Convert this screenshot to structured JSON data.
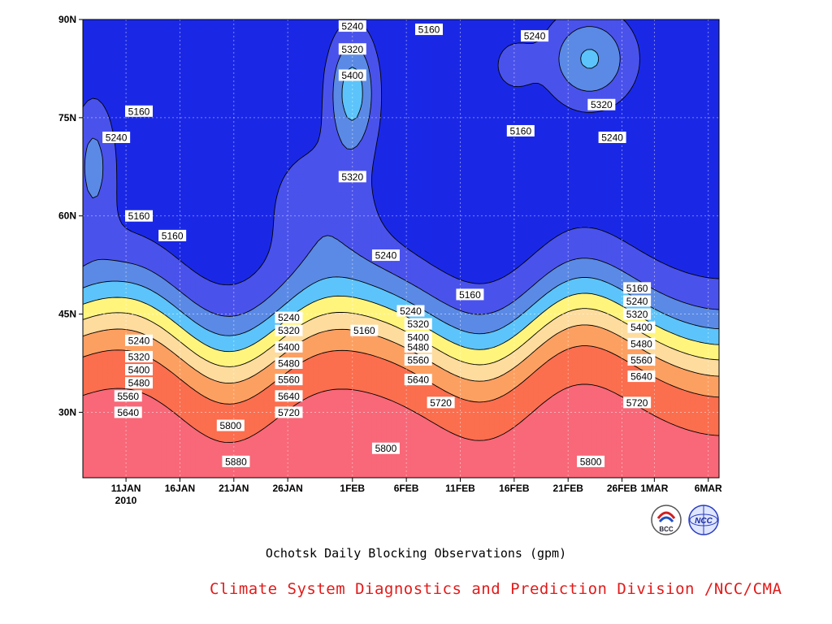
{
  "title": "Ochotsk Daily Blocking Observations (gpm)",
  "credit": "Climate System Diagnostics and Prediction Division /NCC/CMA",
  "logos": [
    {
      "name": "bcc-logo",
      "text": "BCC"
    },
    {
      "name": "ncc-logo",
      "text": "NCC"
    }
  ],
  "chart_data": {
    "type": "heatmap",
    "x_axis": {
      "ticks": [
        "11JAN",
        "16JAN",
        "21JAN",
        "26JAN",
        "1FEB",
        "6FEB",
        "11FEB",
        "16FEB",
        "21FEB",
        "26FEB",
        "1MAR",
        "6MAR"
      ],
      "tick_days": [
        0,
        5,
        10,
        15,
        21,
        26,
        31,
        36,
        41,
        46,
        49,
        54
      ],
      "year_label": "2010",
      "range_days": [
        -4,
        55
      ]
    },
    "y_axis": {
      "ticks": [
        "30N",
        "45N",
        "60N",
        "75N",
        "90N"
      ],
      "tick_values": [
        30,
        45,
        60,
        75,
        90
      ],
      "range": [
        20,
        90
      ]
    },
    "grid": true,
    "levels": [
      5160,
      5240,
      5320,
      5400,
      5480,
      5560,
      5640,
      5720,
      5800,
      5880
    ],
    "fill_colors": [
      "#0a0f6e",
      "#1a28e6",
      "#4a52ec",
      "#5b8ae6",
      "#5cc4fa",
      "#fff57d",
      "#fddc9e",
      "#fca062",
      "#fb6e4e",
      "#f86878",
      "#f0283e"
    ],
    "contour_labels": [
      {
        "text": "5160",
        "day": 1.2,
        "lat": 76
      },
      {
        "text": "5240",
        "day": -0.9,
        "lat": 72
      },
      {
        "text": "5160",
        "day": 1.2,
        "lat": 60
      },
      {
        "text": "5160",
        "day": 4.3,
        "lat": 57
      },
      {
        "text": "5240",
        "day": 21,
        "lat": 89
      },
      {
        "text": "5160",
        "day": 28.1,
        "lat": 88.5
      },
      {
        "text": "5240",
        "day": 37.9,
        "lat": 87.5
      },
      {
        "text": "5320",
        "day": 21,
        "lat": 85.5
      },
      {
        "text": "5400",
        "day": 21,
        "lat": 81.5
      },
      {
        "text": "5320",
        "day": 21,
        "lat": 66
      },
      {
        "text": "5240",
        "day": 24.1,
        "lat": 54
      },
      {
        "text": "5320",
        "day": 44.1,
        "lat": 77
      },
      {
        "text": "5160",
        "day": 36.6,
        "lat": 73
      },
      {
        "text": "5240",
        "day": 45.1,
        "lat": 72
      },
      {
        "text": "5160",
        "day": 31.9,
        "lat": 48
      },
      {
        "text": "5160",
        "day": 47.4,
        "lat": 49
      },
      {
        "text": "5240",
        "day": 26.4,
        "lat": 45.5
      },
      {
        "text": "5240",
        "day": 47.4,
        "lat": 47
      },
      {
        "text": "5320",
        "day": 47.4,
        "lat": 45
      },
      {
        "text": "5400",
        "day": 47.8,
        "lat": 43
      },
      {
        "text": "5480",
        "day": 47.8,
        "lat": 40.5
      },
      {
        "text": "5560",
        "day": 47.8,
        "lat": 38
      },
      {
        "text": "5640",
        "day": 47.8,
        "lat": 35.5
      },
      {
        "text": "5720",
        "day": 47.4,
        "lat": 31.5
      },
      {
        "text": "5320",
        "day": 27.1,
        "lat": 43.5
      },
      {
        "text": "5400",
        "day": 27.1,
        "lat": 41.5
      },
      {
        "text": "5480",
        "day": 27.1,
        "lat": 40
      },
      {
        "text": "5560",
        "day": 27.1,
        "lat": 38
      },
      {
        "text": "5640",
        "day": 27.1,
        "lat": 35
      },
      {
        "text": "5720",
        "day": 29.2,
        "lat": 31.5
      },
      {
        "text": "5160",
        "day": 22.1,
        "lat": 42.5
      },
      {
        "text": "5240",
        "day": 15.1,
        "lat": 44.5
      },
      {
        "text": "5320",
        "day": 15.1,
        "lat": 42.5
      },
      {
        "text": "5400",
        "day": 15.1,
        "lat": 40
      },
      {
        "text": "5480",
        "day": 15.1,
        "lat": 37.5
      },
      {
        "text": "5560",
        "day": 15.1,
        "lat": 35
      },
      {
        "text": "5640",
        "day": 15.1,
        "lat": 32.5
      },
      {
        "text": "5720",
        "day": 15.1,
        "lat": 30
      },
      {
        "text": "5240",
        "day": 1.2,
        "lat": 41
      },
      {
        "text": "5320",
        "day": 1.2,
        "lat": 38.5
      },
      {
        "text": "5400",
        "day": 1.2,
        "lat": 36.5
      },
      {
        "text": "5480",
        "day": 1.2,
        "lat": 34.5
      },
      {
        "text": "5560",
        "day": 0.2,
        "lat": 32.5
      },
      {
        "text": "5640",
        "day": 0.2,
        "lat": 30
      },
      {
        "text": "5800",
        "day": 9.7,
        "lat": 28
      },
      {
        "text": "5880",
        "day": 10.2,
        "lat": 22.5
      },
      {
        "text": "5800",
        "day": 24.1,
        "lat": 24.5
      },
      {
        "text": "5800",
        "day": 43.1,
        "lat": 22.5
      }
    ]
  }
}
